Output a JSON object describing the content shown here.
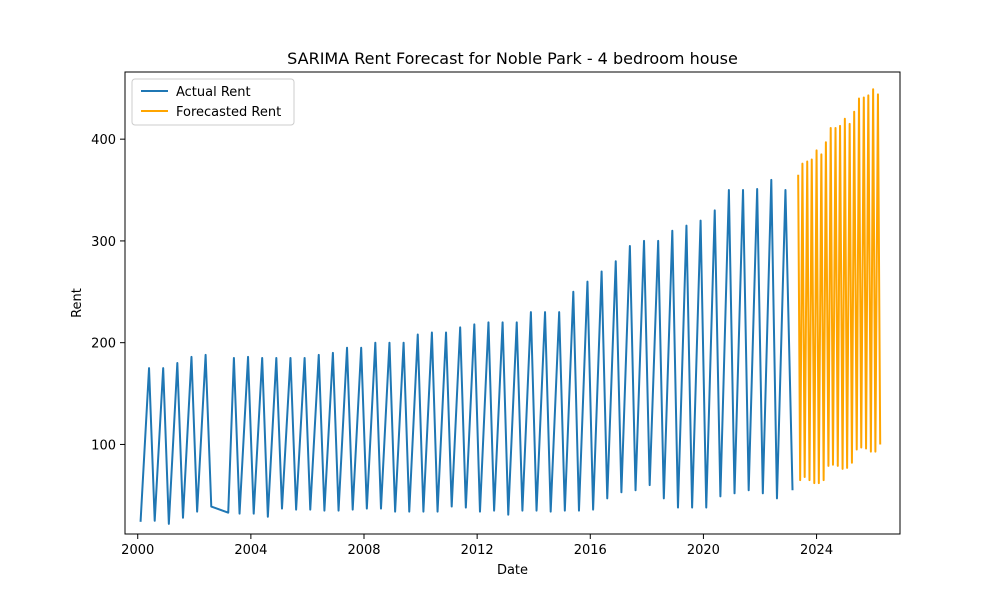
{
  "chart_data": {
    "type": "line",
    "title": "SARIMA Rent Forecast for Noble Park - 4 bedroom house",
    "xlabel": "Date",
    "ylabel": "Rent",
    "xlim": [
      1999.55,
      2026.95
    ],
    "ylim": [
      12,
      466
    ],
    "xticks": [
      2000,
      2004,
      2008,
      2012,
      2016,
      2020,
      2024
    ],
    "yticks": [
      100,
      200,
      300,
      400
    ],
    "grid": false,
    "legend_position": "top-left",
    "series": [
      {
        "name": "Actual Rent",
        "color": "#1f77b4",
        "points": [
          [
            2000.1,
            24
          ],
          [
            2000.4,
            175
          ],
          [
            2000.6,
            25
          ],
          [
            2000.9,
            175
          ],
          [
            2001.1,
            22
          ],
          [
            2001.4,
            180
          ],
          [
            2001.6,
            28
          ],
          [
            2001.9,
            186
          ],
          [
            2002.1,
            34
          ],
          [
            2002.4,
            188
          ],
          [
            2002.6,
            39
          ],
          [
            2003.2,
            33
          ],
          [
            2003.4,
            185
          ],
          [
            2003.6,
            32
          ],
          [
            2003.9,
            186
          ],
          [
            2004.1,
            32
          ],
          [
            2004.4,
            185
          ],
          [
            2004.6,
            29
          ],
          [
            2004.9,
            185
          ],
          [
            2005.1,
            37
          ],
          [
            2005.4,
            185
          ],
          [
            2005.6,
            36
          ],
          [
            2005.9,
            185
          ],
          [
            2006.1,
            36
          ],
          [
            2006.4,
            188
          ],
          [
            2006.6,
            35
          ],
          [
            2006.9,
            190
          ],
          [
            2007.1,
            35
          ],
          [
            2007.4,
            195
          ],
          [
            2007.6,
            36
          ],
          [
            2007.9,
            195
          ],
          [
            2008.1,
            37
          ],
          [
            2008.4,
            200
          ],
          [
            2008.6,
            37
          ],
          [
            2008.9,
            200
          ],
          [
            2009.1,
            34
          ],
          [
            2009.4,
            200
          ],
          [
            2009.6,
            34
          ],
          [
            2009.9,
            208
          ],
          [
            2010.1,
            34
          ],
          [
            2010.4,
            210
          ],
          [
            2010.6,
            34
          ],
          [
            2010.9,
            210
          ],
          [
            2011.1,
            39
          ],
          [
            2011.4,
            215
          ],
          [
            2011.6,
            38
          ],
          [
            2011.9,
            218
          ],
          [
            2012.1,
            34
          ],
          [
            2012.4,
            220
          ],
          [
            2012.6,
            35
          ],
          [
            2012.9,
            220
          ],
          [
            2013.1,
            31
          ],
          [
            2013.4,
            220
          ],
          [
            2013.6,
            35
          ],
          [
            2013.9,
            230
          ],
          [
            2014.1,
            35
          ],
          [
            2014.4,
            230
          ],
          [
            2014.6,
            34
          ],
          [
            2014.9,
            230
          ],
          [
            2015.1,
            35
          ],
          [
            2015.4,
            250
          ],
          [
            2015.6,
            35
          ],
          [
            2015.9,
            260
          ],
          [
            2016.1,
            36
          ],
          [
            2016.4,
            270
          ],
          [
            2016.6,
            47
          ],
          [
            2016.9,
            280
          ],
          [
            2017.1,
            53
          ],
          [
            2017.4,
            295
          ],
          [
            2017.6,
            55
          ],
          [
            2017.9,
            300
          ],
          [
            2018.1,
            60
          ],
          [
            2018.4,
            300
          ],
          [
            2018.6,
            47
          ],
          [
            2018.9,
            310
          ],
          [
            2019.1,
            38
          ],
          [
            2019.4,
            315
          ],
          [
            2019.6,
            38
          ],
          [
            2019.9,
            320
          ],
          [
            2020.1,
            38
          ],
          [
            2020.4,
            330
          ],
          [
            2020.6,
            49
          ],
          [
            2020.9,
            350
          ],
          [
            2021.1,
            52
          ],
          [
            2021.4,
            350
          ],
          [
            2021.6,
            55
          ],
          [
            2021.9,
            351
          ],
          [
            2022.1,
            52
          ],
          [
            2022.4,
            360
          ],
          [
            2022.6,
            47
          ],
          [
            2022.9,
            350
          ],
          [
            2023.15,
            55
          ]
        ]
      },
      {
        "name": "Forecasted Rent",
        "color": "#ffa500",
        "points": [
          [
            2023.35,
            365
          ],
          [
            2023.42,
            65
          ],
          [
            2023.5,
            376
          ],
          [
            2023.58,
            68
          ],
          [
            2023.67,
            378
          ],
          [
            2023.75,
            65
          ],
          [
            2023.83,
            380
          ],
          [
            2023.92,
            62
          ],
          [
            2024.0,
            389
          ],
          [
            2024.08,
            62
          ],
          [
            2024.17,
            385
          ],
          [
            2024.25,
            65
          ],
          [
            2024.33,
            397
          ],
          [
            2024.42,
            79
          ],
          [
            2024.5,
            411
          ],
          [
            2024.58,
            80
          ],
          [
            2024.67,
            411
          ],
          [
            2024.75,
            79
          ],
          [
            2024.83,
            413
          ],
          [
            2024.92,
            76
          ],
          [
            2025.0,
            420
          ],
          [
            2025.08,
            77
          ],
          [
            2025.17,
            415
          ],
          [
            2025.25,
            82
          ],
          [
            2025.33,
            427
          ],
          [
            2025.42,
            95
          ],
          [
            2025.5,
            440
          ],
          [
            2025.58,
            97
          ],
          [
            2025.67,
            441
          ],
          [
            2025.75,
            96
          ],
          [
            2025.83,
            443
          ],
          [
            2025.92,
            93
          ],
          [
            2026.0,
            449
          ],
          [
            2026.08,
            93
          ],
          [
            2026.17,
            444
          ],
          [
            2026.25,
            100
          ]
        ]
      }
    ]
  }
}
